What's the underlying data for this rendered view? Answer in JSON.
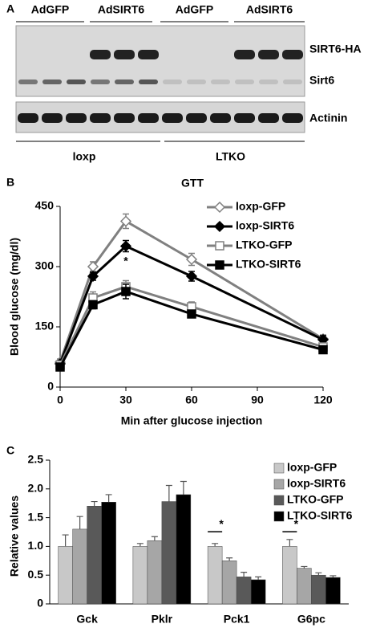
{
  "panel_labels": [
    "A",
    "B",
    "C"
  ],
  "blot": {
    "lane_groups": [
      "AdGFP",
      "AdSIRT6",
      "AdGFP",
      "AdSIRT6"
    ],
    "bands": [
      "SIRT6-HA",
      "Sirt6",
      "Actinin"
    ],
    "genotypes": [
      "loxp",
      "LTKO"
    ]
  },
  "chart_data": [
    {
      "type": "line",
      "title": "GTT",
      "x_label": "Min after glucose injection",
      "y_label": "Blood glucose (mg/dl)",
      "x": [
        0,
        15,
        30,
        60,
        120
      ],
      "xlim": [
        0,
        120
      ],
      "xticks": [
        0,
        30,
        60,
        90,
        120
      ],
      "ylim": [
        0,
        450
      ],
      "yticks": [
        0,
        150,
        300,
        450
      ],
      "series": [
        {
          "name": "loxp-GFP",
          "color": "#808080",
          "marker": "diamond",
          "filled": false,
          "values": [
            62,
            300,
            413,
            318,
            120
          ],
          "errors": [
            8,
            12,
            18,
            15,
            10
          ]
        },
        {
          "name": "loxp-SIRT6",
          "color": "#000000",
          "marker": "diamond",
          "filled": true,
          "values": [
            58,
            276,
            351,
            276,
            118
          ],
          "errors": [
            6,
            10,
            14,
            12,
            10
          ]
        },
        {
          "name": "LTKO-GFP",
          "color": "#808080",
          "marker": "square",
          "filled": false,
          "values": [
            55,
            222,
            250,
            200,
            100
          ],
          "errors": [
            6,
            15,
            15,
            12,
            8
          ]
        },
        {
          "name": "LTKO-SIRT6",
          "color": "#000000",
          "marker": "square",
          "filled": true,
          "values": [
            50,
            205,
            238,
            182,
            93
          ],
          "errors": [
            5,
            10,
            18,
            8,
            8
          ]
        }
      ],
      "annotations": [
        "*"
      ]
    },
    {
      "type": "bar",
      "y_label": "Relative values",
      "categories": [
        "Gck",
        "Pklr",
        "Pck1",
        "G6pc"
      ],
      "ylim": [
        0,
        2.5
      ],
      "yticks": [
        0,
        0.5,
        {
          "value": 1,
          "label": "1.0"
        },
        1.5,
        {
          "value": 2,
          "label": "2.0"
        },
        2.5
      ],
      "series": [
        {
          "name": "loxp-GFP",
          "color": "#c8c8c8",
          "values": [
            1.0,
            1.0,
            1.0,
            1.0
          ],
          "errors": [
            0.2,
            0.05,
            0.05,
            0.12
          ]
        },
        {
          "name": "loxp-SIRT6",
          "color": "#a6a6a6",
          "values": [
            1.3,
            1.1,
            0.75,
            0.62
          ],
          "errors": [
            0.22,
            0.07,
            0.05,
            0.03
          ]
        },
        {
          "name": "LTKO-GFP",
          "color": "#595959",
          "values": [
            1.7,
            1.78,
            0.47,
            0.5
          ],
          "errors": [
            0.08,
            0.28,
            0.08,
            0.04
          ]
        },
        {
          "name": "LTKO-SIRT6",
          "color": "#000000",
          "values": [
            1.77,
            1.9,
            0.42,
            0.46
          ],
          "errors": [
            0.13,
            0.23,
            0.05,
            0.03
          ]
        }
      ],
      "annotations": [
        "*",
        "*"
      ]
    }
  ]
}
